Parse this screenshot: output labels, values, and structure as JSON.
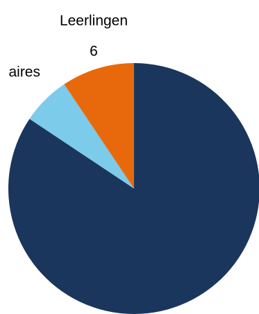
{
  "chart_data": {
    "type": "pie",
    "categories": [
      null,
      "aires",
      "Leerlingen"
    ],
    "values": [
      54,
      4,
      6
    ],
    "colors": [
      "#1b365d",
      "#7ccbea",
      "#e8690b"
    ]
  }
}
